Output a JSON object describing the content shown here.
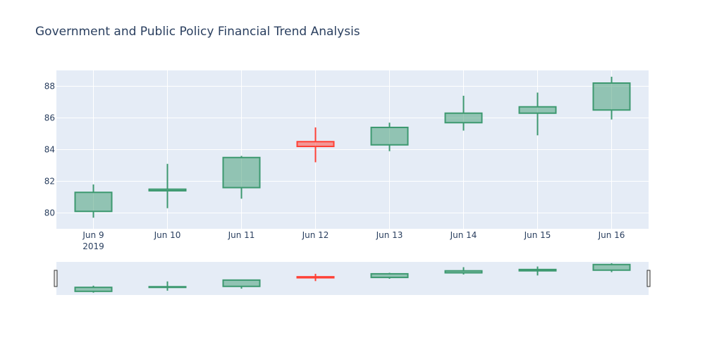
{
  "chart_data": {
    "type": "candlestick",
    "title": "Government and Public Policy Financial Trend Analysis",
    "xlabel": "",
    "ylabel": "",
    "ylim": [
      79,
      89
    ],
    "y_ticks": [
      80,
      82,
      84,
      86,
      88
    ],
    "grid": true,
    "range_slider": true,
    "year_label": "2019",
    "colors": {
      "increasing": "#3d9970",
      "increasing_fill": "rgba(61,153,112,0.5)",
      "decreasing": "#ff4136",
      "decreasing_fill": "rgba(255,65,54,0.5)",
      "plot_bg": "#e5ecf6",
      "title": "#2a3f5f"
    },
    "candles": [
      {
        "x": "Jun 9",
        "open": 80.1,
        "high": 81.8,
        "low": 79.7,
        "close": 81.3
      },
      {
        "x": "Jun 10",
        "open": 81.4,
        "high": 83.1,
        "low": 80.3,
        "close": 81.5
      },
      {
        "x": "Jun 11",
        "open": 81.6,
        "high": 83.6,
        "low": 80.9,
        "close": 83.5
      },
      {
        "x": "Jun 12",
        "open": 84.5,
        "high": 85.4,
        "low": 83.2,
        "close": 84.2
      },
      {
        "x": "Jun 13",
        "open": 84.3,
        "high": 85.7,
        "low": 83.9,
        "close": 85.4
      },
      {
        "x": "Jun 14",
        "open": 85.7,
        "high": 87.4,
        "low": 85.2,
        "close": 86.3
      },
      {
        "x": "Jun 15",
        "open": 86.3,
        "high": 87.6,
        "low": 84.9,
        "close": 86.7
      },
      {
        "x": "Jun 16",
        "open": 86.5,
        "high": 88.6,
        "low": 85.9,
        "close": 88.2
      }
    ]
  }
}
